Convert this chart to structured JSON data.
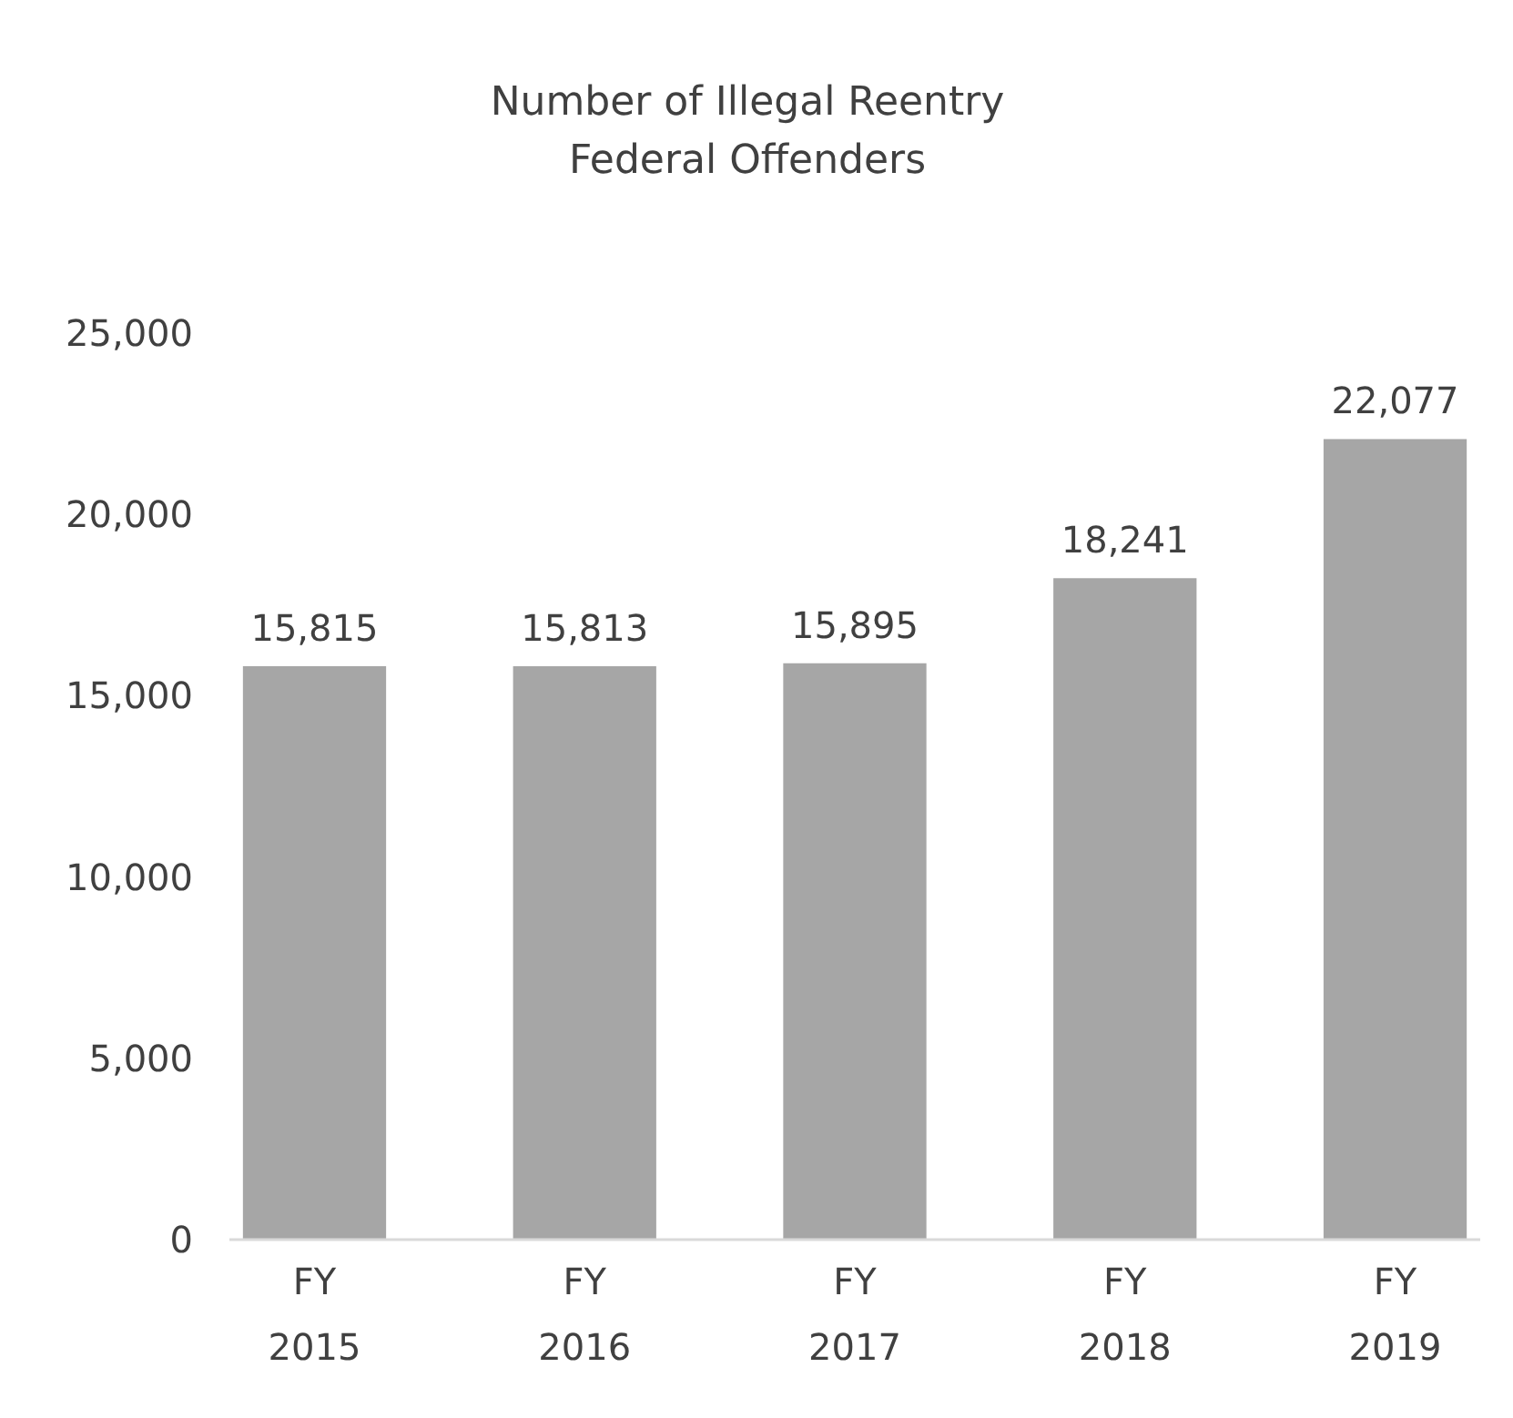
{
  "chart_data": {
    "type": "bar",
    "title": "Number of Illegal Reentry Federal Offenders",
    "categories": [
      "FY 2015",
      "FY 2016",
      "FY 2017",
      "FY 2018",
      "FY 2019"
    ],
    "values": [
      15815,
      15813,
      15895,
      18241,
      22077
    ],
    "value_labels": [
      "15,815",
      "15,813",
      "15,895",
      "18,241",
      "22,077"
    ],
    "color": "#a6a6a6",
    "ylim": [
      0,
      25000
    ],
    "yticks": [
      0,
      {
        "value": 5000,
        "label": "5,000"
      },
      {
        "value": 10000,
        "label": "10,000"
      },
      {
        "value": 15000,
        "label": "15,000"
      },
      {
        "value": 20000,
        "label": "20,000"
      },
      {
        "value": 25000,
        "label": "25,000"
      }
    ],
    "grid": false
  }
}
